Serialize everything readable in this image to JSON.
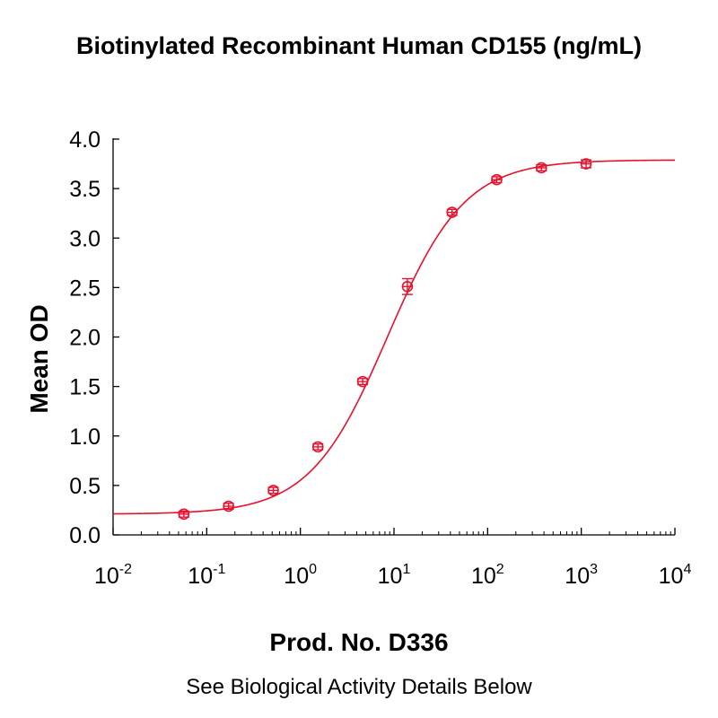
{
  "chart_data": {
    "type": "scatter",
    "title": "Biotinylated Recombinant Human CD155 (ng/mL)",
    "xlabel": "",
    "ylabel": "Mean OD",
    "x_scale": "log",
    "xlim": [
      0.01,
      10000
    ],
    "ylim": [
      0.0,
      4.0
    ],
    "x_ticks": [
      {
        "base": "10",
        "exp": "-2",
        "value": 0.01
      },
      {
        "base": "10",
        "exp": "-1",
        "value": 0.1
      },
      {
        "base": "10",
        "exp": "0",
        "value": 1
      },
      {
        "base": "10",
        "exp": "1",
        "value": 10
      },
      {
        "base": "10",
        "exp": "2",
        "value": 100
      },
      {
        "base": "10",
        "exp": "3",
        "value": 1000
      },
      {
        "base": "10",
        "exp": "4",
        "value": 10000
      }
    ],
    "y_ticks": [
      "0.0",
      "0.5",
      "1.0",
      "1.5",
      "2.0",
      "2.5",
      "3.0",
      "3.5",
      "4.0"
    ],
    "grid": false,
    "color": "#e8112d",
    "series": [
      {
        "x": [
          0.057,
          0.171,
          0.514,
          1.54,
          4.63,
          13.9,
          41.7,
          125,
          375,
          1125
        ],
        "y": [
          0.21,
          0.29,
          0.45,
          0.89,
          1.55,
          2.51,
          3.26,
          3.59,
          3.71,
          3.75
        ],
        "error": [
          0.03,
          0.03,
          0.03,
          0.03,
          0.03,
          0.08,
          0.03,
          0.03,
          0.03,
          0.04
        ]
      }
    ],
    "fit": {
      "bottom": 0.21,
      "top": 3.79,
      "ec50": 8.5,
      "hill": 1.05
    }
  },
  "prod_label": "Prod. No. D336",
  "footnote": "See Biological Activity Details Below"
}
